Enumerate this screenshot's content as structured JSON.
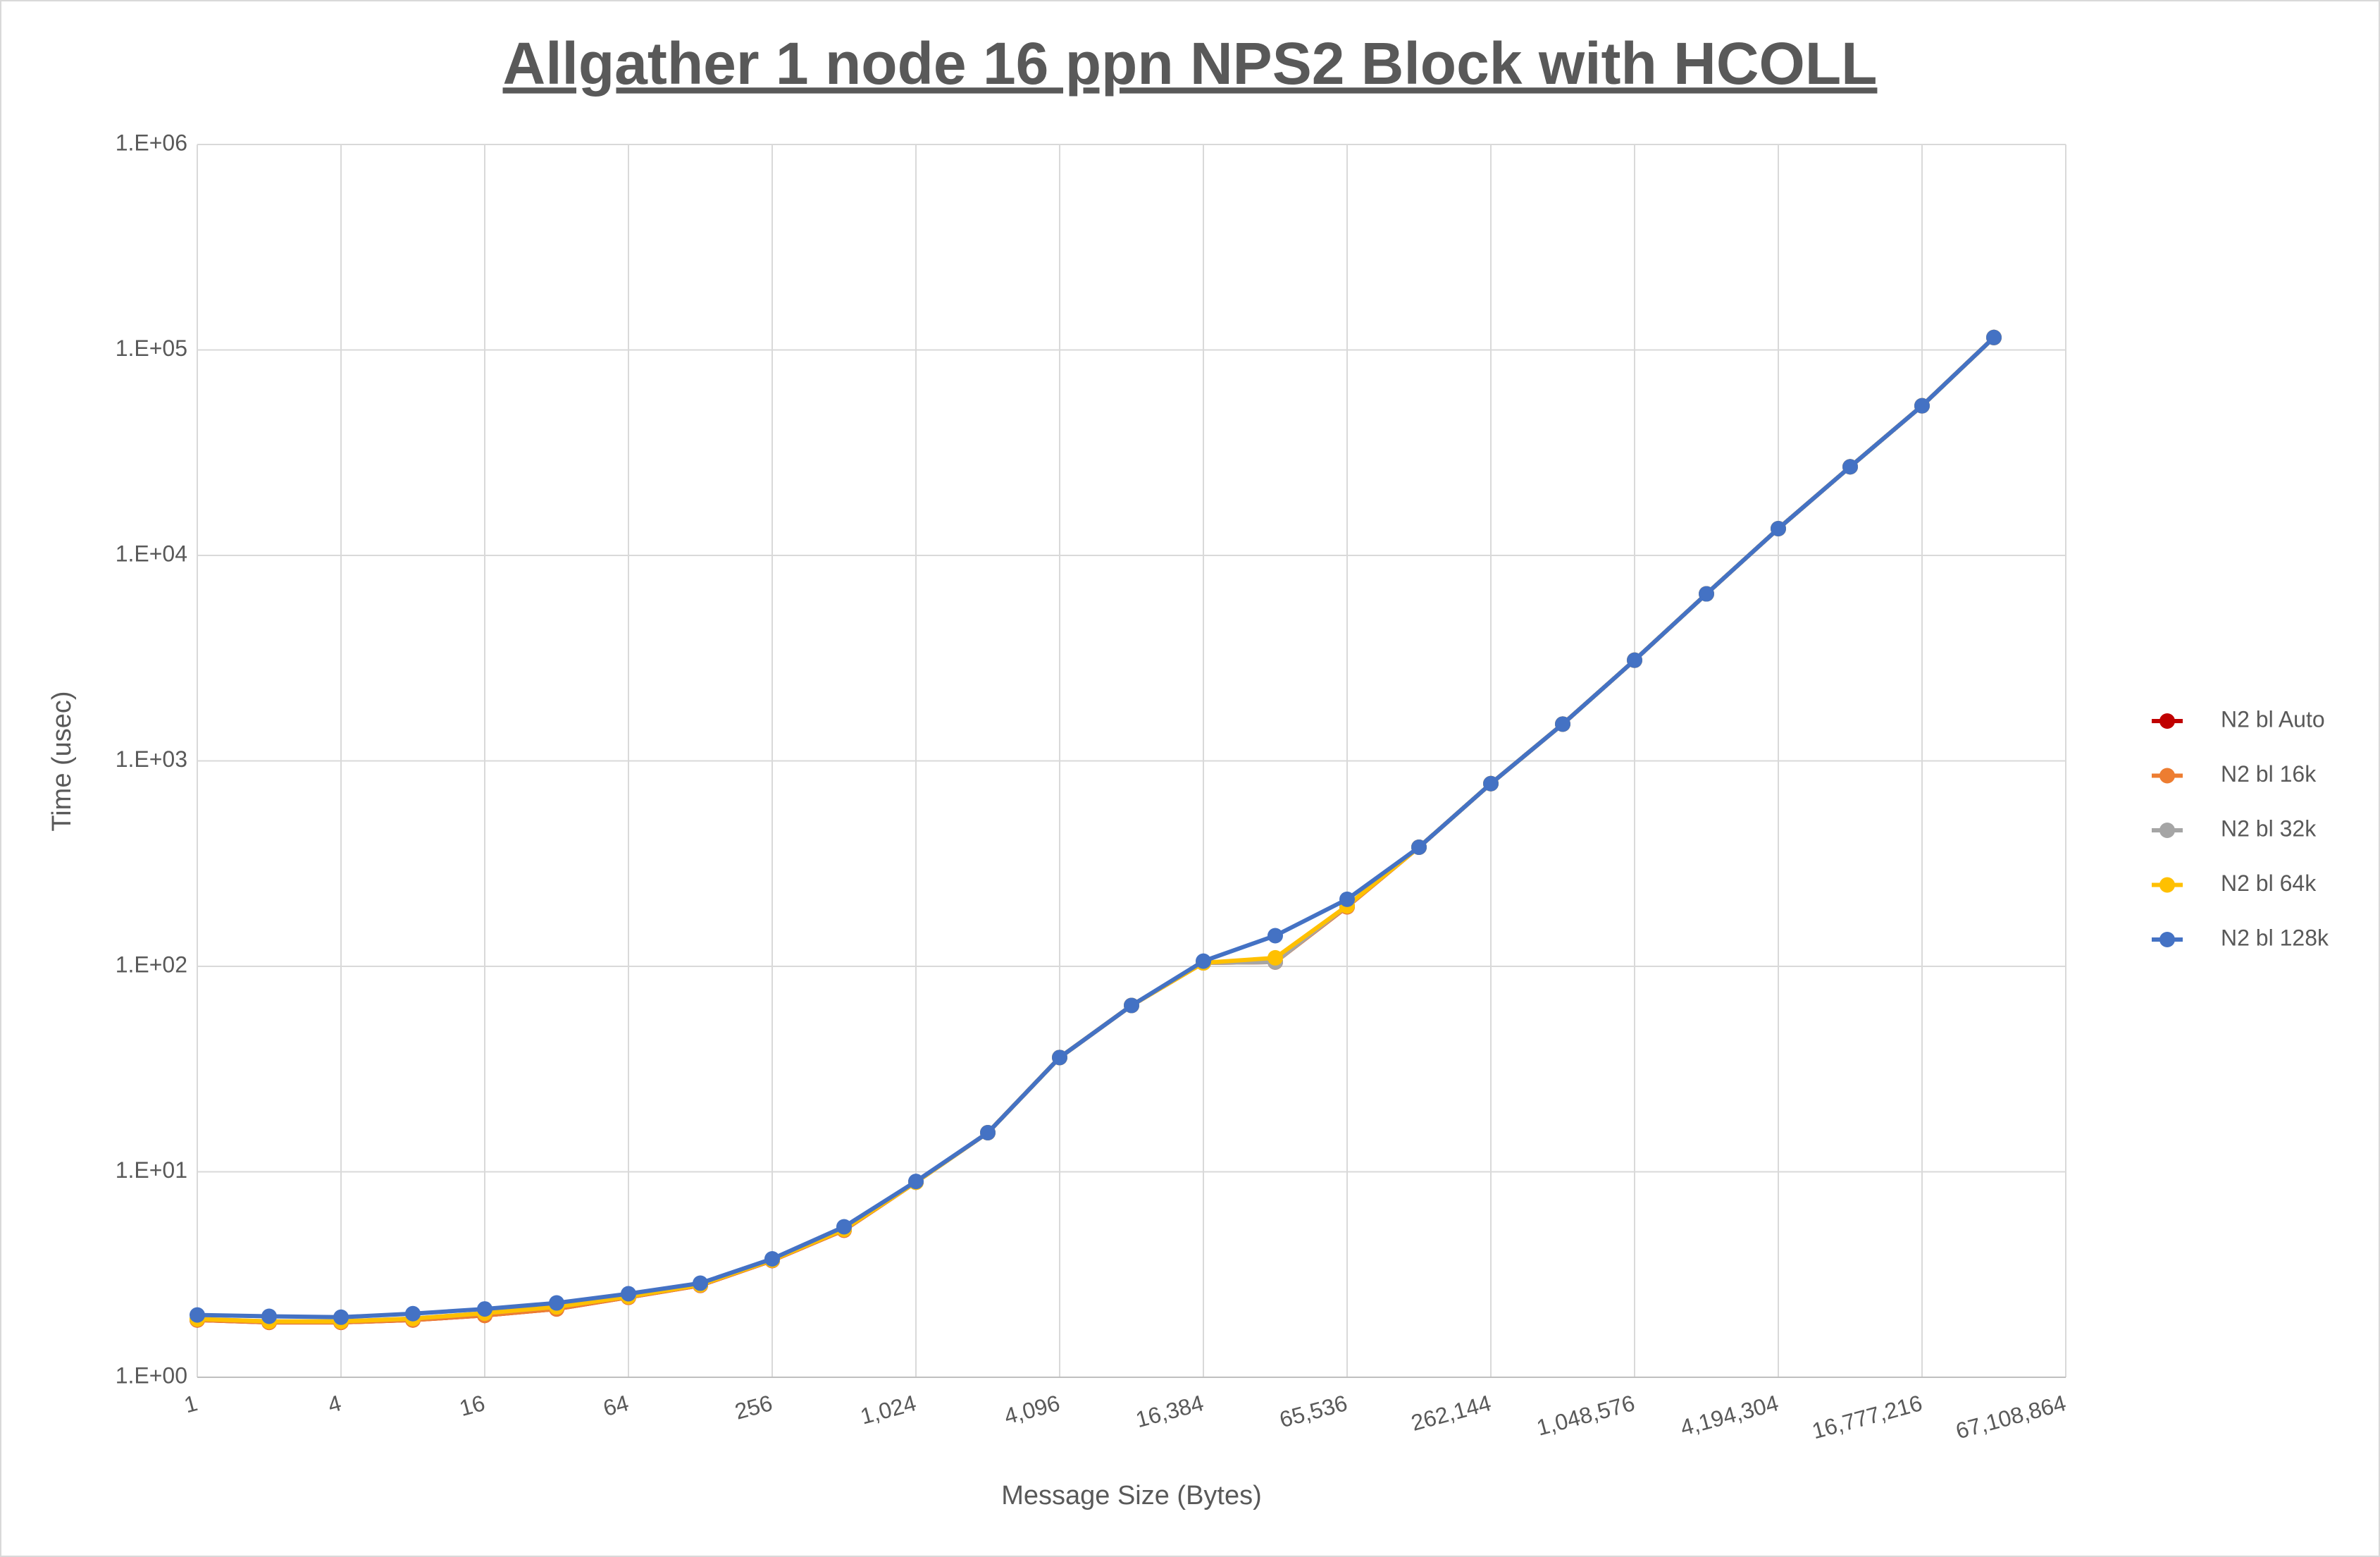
{
  "chart_data": {
    "type": "line",
    "title": "Allgather 1 node 16 ppn NPS2 Block with HCOLL",
    "x_label": "Message Size (Bytes)",
    "y_label": "Time (usec)",
    "x_scale": "log2",
    "y_scale": "log10",
    "grid": true,
    "legend": "right",
    "x": [
      1,
      2,
      4,
      8,
      16,
      32,
      64,
      128,
      256,
      512,
      1024,
      2048,
      4096,
      8192,
      16384,
      32768,
      65536,
      131072,
      262144,
      524288,
      1048576,
      2097152,
      4194304,
      8388608,
      16777216,
      33554432
    ],
    "xlim": [
      1,
      67108864
    ],
    "xticks": [
      1,
      4,
      16,
      64,
      256,
      {
        "value": 1024,
        "label": "1,024"
      },
      {
        "value": 4096,
        "label": "4,096"
      },
      {
        "value": 16384,
        "label": "16,384"
      },
      {
        "value": 65536,
        "label": "65,536"
      },
      {
        "value": 262144,
        "label": "262,144"
      },
      {
        "value": 1048576,
        "label": "1,048,576"
      },
      {
        "value": 4194304,
        "label": "4,194,304"
      },
      {
        "value": 16777216,
        "label": "16,777,216"
      },
      {
        "value": 67108864,
        "label": "67,108,864"
      }
    ],
    "ylim": [
      1,
      1000000
    ],
    "yticks": [
      {
        "value": 1,
        "label": "1.E+00"
      },
      {
        "value": 10,
        "label": "1.E+01"
      },
      {
        "value": 100,
        "label": "1.E+02"
      },
      {
        "value": 1000,
        "label": "1.E+03"
      },
      {
        "value": 10000,
        "label": "1.E+04"
      },
      {
        "value": 100000,
        "label": "1.E+05"
      },
      {
        "value": 1000000,
        "label": "1.E+06"
      }
    ],
    "series": [
      {
        "name": "N2 bl Auto",
        "color": "#c00000",
        "values": [
          1.9,
          1.85,
          1.85,
          1.9,
          2.0,
          2.15,
          2.45,
          2.8,
          3.7,
          5.2,
          8.9,
          15.5,
          36,
          64.5,
          104,
          105,
          195,
          380,
          775,
          1510,
          3090,
          6500,
          13500,
          27000,
          53500,
          115000
        ]
      },
      {
        "name": "N2 bl 16k",
        "color": "#ed7d31",
        "values": [
          1.9,
          1.85,
          1.85,
          1.9,
          2.0,
          2.15,
          2.45,
          2.8,
          3.7,
          5.2,
          8.9,
          15.5,
          36,
          64.5,
          104,
          105,
          195,
          380,
          775,
          1510,
          3090,
          6500,
          13500,
          27000,
          53500,
          115000
        ]
      },
      {
        "name": "N2 bl 32k",
        "color": "#a5a5a5",
        "values": [
          1.92,
          1.87,
          1.87,
          1.93,
          2.05,
          2.2,
          2.47,
          2.82,
          3.72,
          5.25,
          8.9,
          15.5,
          36,
          64.5,
          104,
          105,
          197,
          380,
          775,
          1510,
          3090,
          6500,
          13500,
          27000,
          53500,
          115000
        ]
      },
      {
        "name": "N2 bl 64k",
        "color": "#ffc000",
        "values": [
          1.92,
          1.87,
          1.87,
          1.93,
          2.05,
          2.2,
          2.47,
          2.82,
          3.72,
          5.25,
          8.9,
          15.5,
          36,
          64.5,
          104,
          110,
          197,
          380,
          775,
          1510,
          3090,
          6500,
          13500,
          27000,
          53500,
          115000
        ]
      },
      {
        "name": "N2 bl 128k",
        "color": "#4472c4",
        "values": [
          2.01,
          1.98,
          1.96,
          2.04,
          2.15,
          2.3,
          2.55,
          2.87,
          3.77,
          5.4,
          8.98,
          15.5,
          36,
          64.5,
          106,
          141,
          212,
          380,
          775,
          1510,
          3090,
          6500,
          13500,
          27000,
          53500,
          115000
        ]
      }
    ]
  }
}
